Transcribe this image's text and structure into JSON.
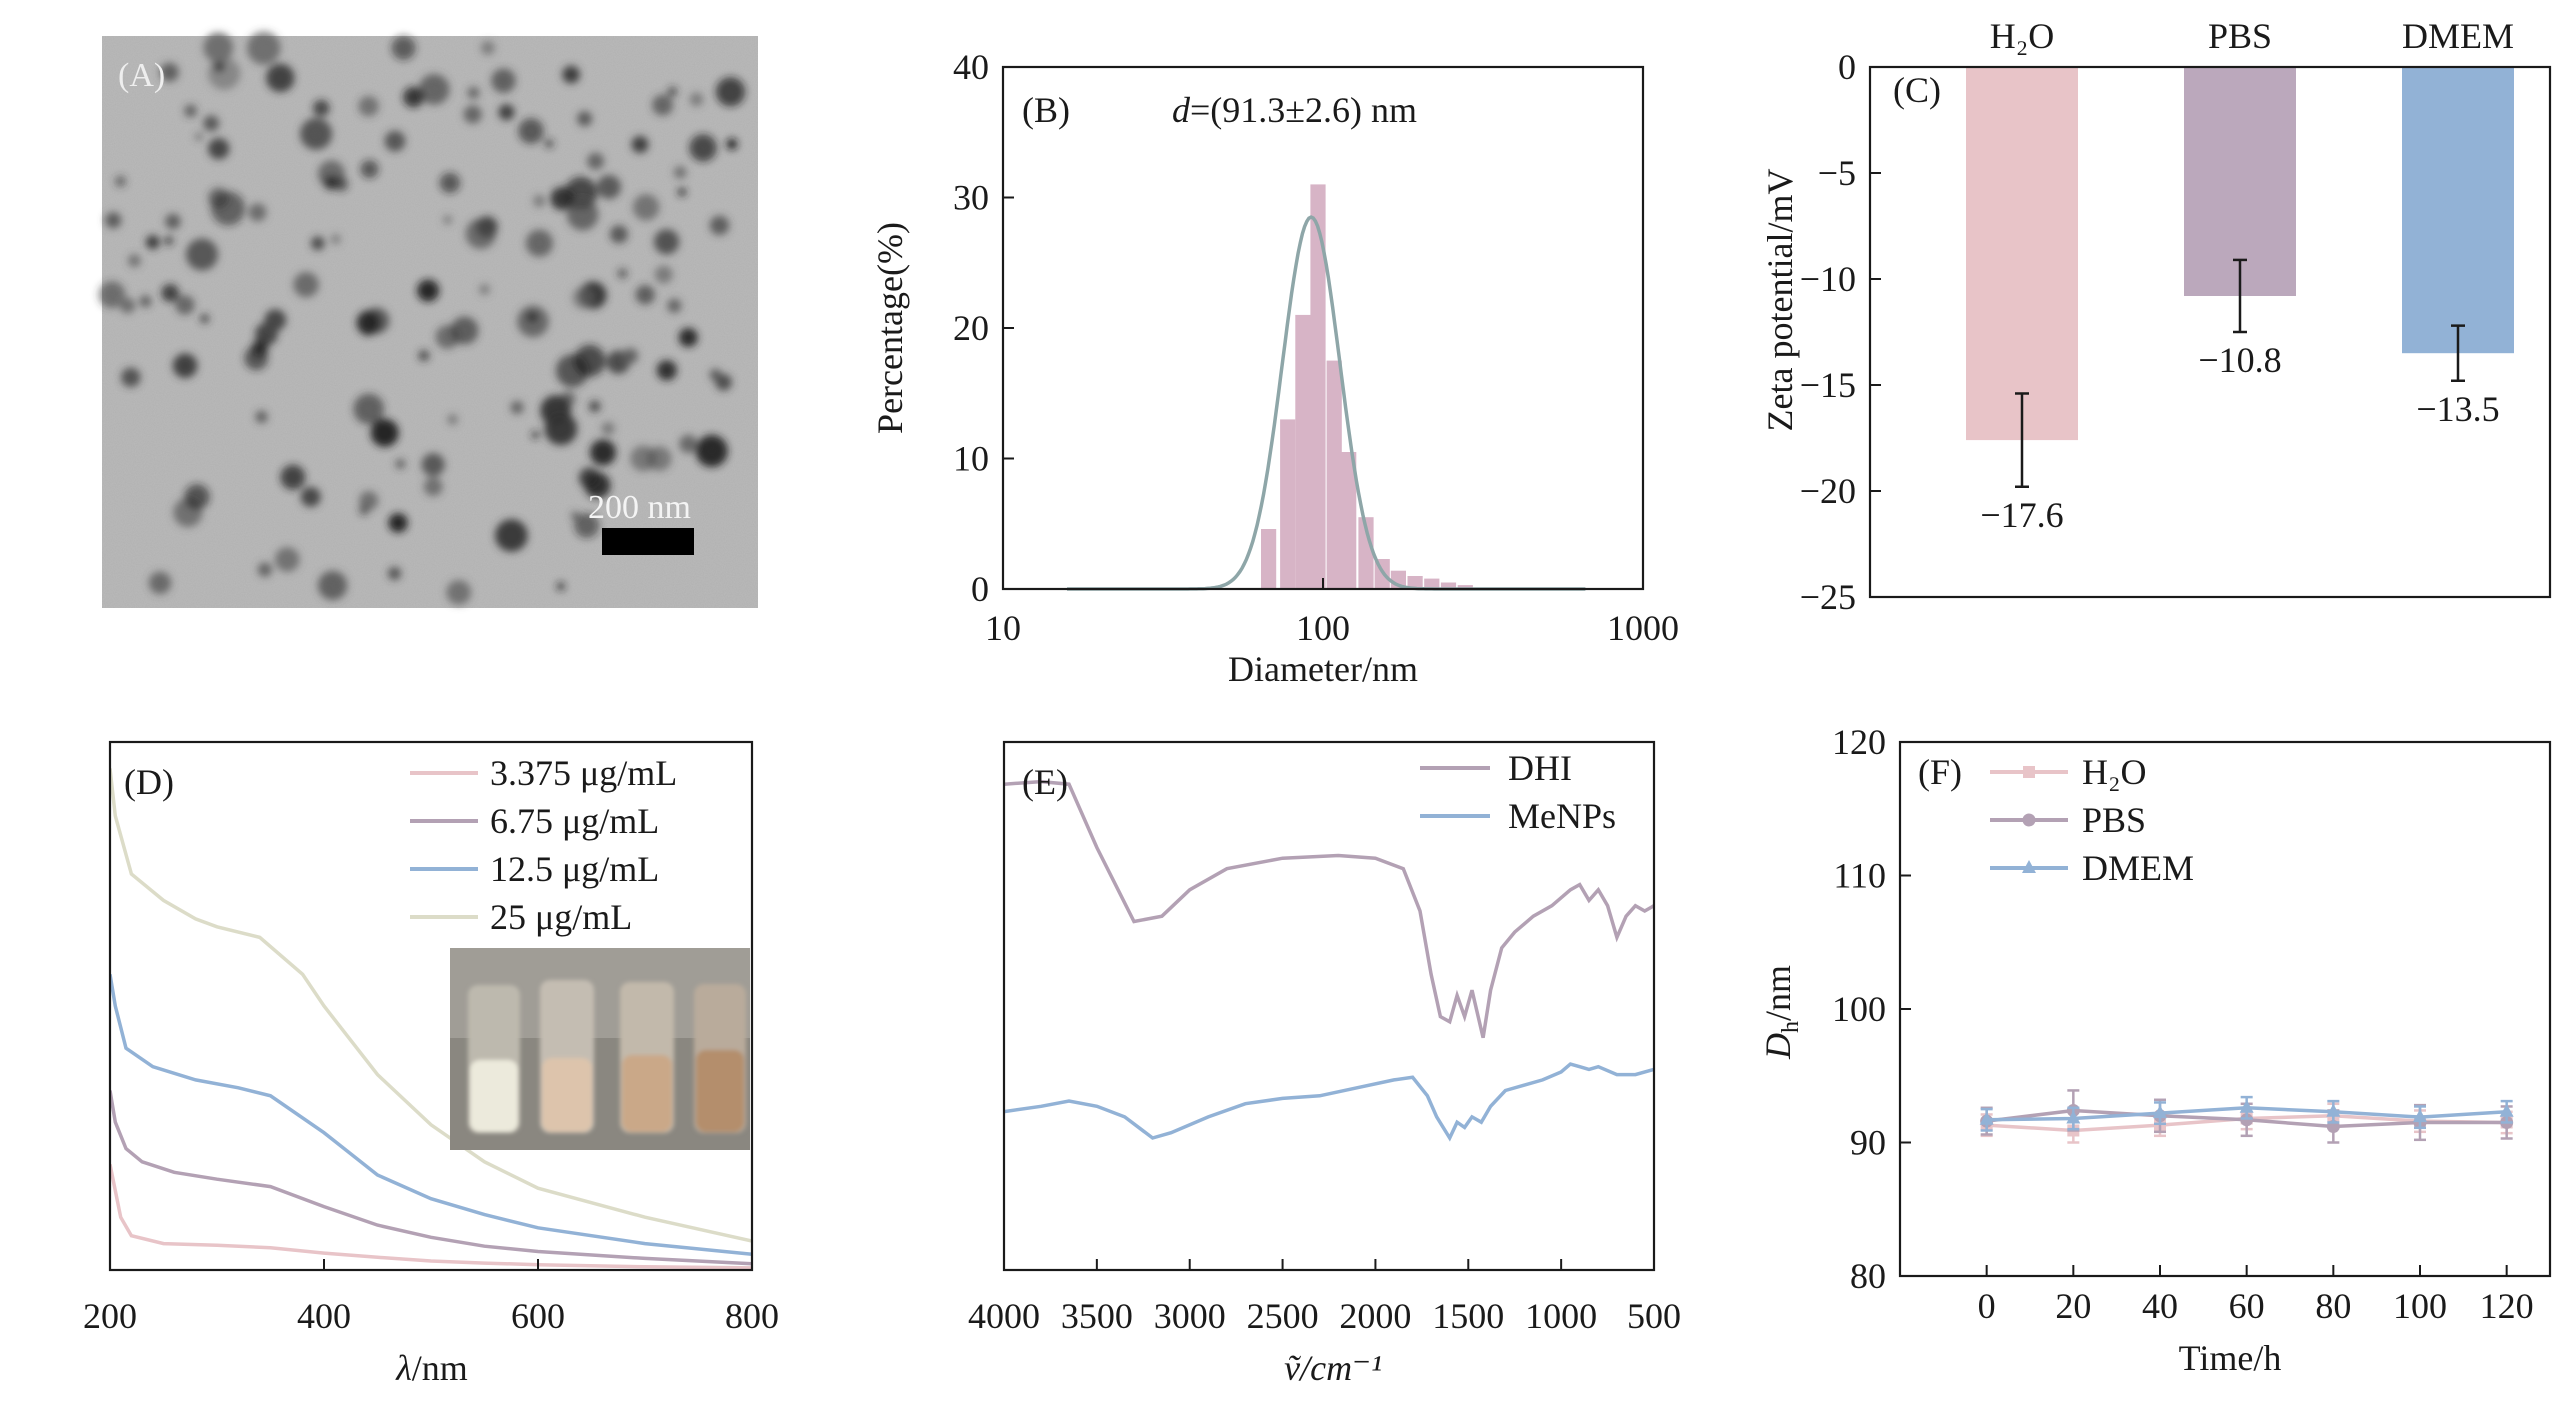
{
  "chart_data": [
    {
      "panel": "(A)",
      "type": "image",
      "scale_bar_label": "200 nm"
    },
    {
      "panel": "(B)",
      "type": "bar",
      "annotation": {
        "d": "d",
        "value": "=(91.3±2.6) nm"
      },
      "xlabel": "Diameter/nm",
      "ylabel": "Percentage(%)",
      "xscale": "log",
      "xlim": [
        10,
        1000
      ],
      "ylim": [
        0,
        40
      ],
      "xticks": [
        10,
        100,
        1000
      ],
      "yticks": [
        0,
        10,
        20,
        30,
        40
      ],
      "bars": [
        {
          "x": 68,
          "y": 4.6
        },
        {
          "x": 78,
          "y": 13
        },
        {
          "x": 87,
          "y": 21
        },
        {
          "x": 97,
          "y": 31
        },
        {
          "x": 109,
          "y": 17.5
        },
        {
          "x": 121,
          "y": 10.5
        },
        {
          "x": 137,
          "y": 5.5
        },
        {
          "x": 154,
          "y": 2.3
        },
        {
          "x": 173,
          "y": 1.4
        },
        {
          "x": 195,
          "y": 1.0
        },
        {
          "x": 220,
          "y": 0.8
        },
        {
          "x": 248,
          "y": 0.5
        },
        {
          "x": 280,
          "y": 0.3
        }
      ],
      "fit_curve": {
        "mean_log10": 1.963,
        "sigma_log10": 0.09,
        "peak": 28.5
      }
    },
    {
      "panel": "(C)",
      "type": "bar",
      "ylabel": "Zeta potential/mV",
      "categories": [
        "H₂O",
        "PBS",
        "DMEM"
      ],
      "values": [
        -17.6,
        -10.8,
        -13.5
      ],
      "value_labels": [
        "−17.6",
        "−10.8",
        "−13.5"
      ],
      "errors": [
        2.2,
        1.7,
        1.3
      ],
      "colors": [
        "#e8c4c8",
        "#bba8bc",
        "#92b2d6"
      ],
      "ylim": [
        -25,
        0
      ],
      "yticks": [
        0,
        -5,
        -10,
        -15,
        -20,
        -25
      ],
      "ytick_labels": [
        "0",
        "−5",
        "−10",
        "−15",
        "−20",
        "−25"
      ]
    },
    {
      "panel": "(D)",
      "type": "line",
      "xlabel_symbol": "λ",
      "xlabel_unit": "/nm",
      "xlim": [
        200,
        800
      ],
      "xticks": [
        200,
        400,
        600,
        800
      ],
      "yaxis": "unlabeled",
      "legend": "top-right",
      "inset": "photo",
      "series": [
        {
          "name": "3.375 μg/mL",
          "color": "#e8c4c8",
          "points": [
            [
              200,
              0.2
            ],
            [
              210,
              0.1
            ],
            [
              220,
              0.065
            ],
            [
              250,
              0.05
            ],
            [
              300,
              0.047
            ],
            [
              350,
              0.042
            ],
            [
              400,
              0.032
            ],
            [
              450,
              0.024
            ],
            [
              500,
              0.017
            ],
            [
              550,
              0.013
            ],
            [
              600,
              0.01
            ],
            [
              700,
              0.006
            ],
            [
              800,
              0.004
            ]
          ]
        },
        {
          "name": "6.75 μg/mL",
          "color": "#b3a1b4",
          "points": [
            [
              200,
              0.34
            ],
            [
              205,
              0.28
            ],
            [
              215,
              0.23
            ],
            [
              230,
              0.205
            ],
            [
              260,
              0.185
            ],
            [
              300,
              0.172
            ],
            [
              350,
              0.158
            ],
            [
              400,
              0.12
            ],
            [
              450,
              0.085
            ],
            [
              500,
              0.062
            ],
            [
              550,
              0.045
            ],
            [
              600,
              0.035
            ],
            [
              700,
              0.022
            ],
            [
              800,
              0.012
            ]
          ]
        },
        {
          "name": "12.5 μg/mL",
          "color": "#92b2d6",
          "points": [
            [
              200,
              0.56
            ],
            [
              205,
              0.5
            ],
            [
              215,
              0.42
            ],
            [
              240,
              0.385
            ],
            [
              280,
              0.36
            ],
            [
              320,
              0.345
            ],
            [
              350,
              0.33
            ],
            [
              400,
              0.26
            ],
            [
              450,
              0.18
            ],
            [
              500,
              0.135
            ],
            [
              550,
              0.105
            ],
            [
              600,
              0.08
            ],
            [
              700,
              0.05
            ],
            [
              800,
              0.03
            ]
          ]
        },
        {
          "name": "25 μg/mL",
          "color": "#dcdcc8",
          "points": [
            [
              200,
              0.95
            ],
            [
              205,
              0.86
            ],
            [
              220,
              0.75
            ],
            [
              250,
              0.7
            ],
            [
              280,
              0.665
            ],
            [
              300,
              0.65
            ],
            [
              340,
              0.63
            ],
            [
              380,
              0.56
            ],
            [
              400,
              0.5
            ],
            [
              450,
              0.37
            ],
            [
              500,
              0.275
            ],
            [
              550,
              0.205
            ],
            [
              600,
              0.155
            ],
            [
              700,
              0.1
            ],
            [
              800,
              0.055
            ]
          ]
        }
      ]
    },
    {
      "panel": "(E)",
      "type": "line",
      "xlabel": "ṽ/cm⁻¹",
      "xlim": [
        4000,
        500
      ],
      "xticks": [
        4000,
        3500,
        3000,
        2500,
        2000,
        1500,
        1000,
        500
      ],
      "yaxis": "unlabeled",
      "legend": "top-right",
      "series": [
        {
          "name": "DHI",
          "color": "#b3a1b4",
          "points": [
            [
              4000,
              0.92
            ],
            [
              3800,
              0.925
            ],
            [
              3650,
              0.92
            ],
            [
              3500,
              0.8
            ],
            [
              3300,
              0.66
            ],
            [
              3150,
              0.67
            ],
            [
              3000,
              0.72
            ],
            [
              2800,
              0.76
            ],
            [
              2500,
              0.78
            ],
            [
              2200,
              0.785
            ],
            [
              2000,
              0.78
            ],
            [
              1850,
              0.76
            ],
            [
              1760,
              0.68
            ],
            [
              1700,
              0.56
            ],
            [
              1650,
              0.48
            ],
            [
              1600,
              0.47
            ],
            [
              1560,
              0.52
            ],
            [
              1520,
              0.48
            ],
            [
              1480,
              0.53
            ],
            [
              1420,
              0.44
            ],
            [
              1380,
              0.53
            ],
            [
              1320,
              0.61
            ],
            [
              1250,
              0.64
            ],
            [
              1150,
              0.67
            ],
            [
              1050,
              0.69
            ],
            [
              950,
              0.72
            ],
            [
              900,
              0.73
            ],
            [
              850,
              0.7
            ],
            [
              800,
              0.72
            ],
            [
              750,
              0.69
            ],
            [
              700,
              0.63
            ],
            [
              650,
              0.67
            ],
            [
              600,
              0.69
            ],
            [
              550,
              0.68
            ],
            [
              500,
              0.69
            ]
          ]
        },
        {
          "name": "MeNPs",
          "color": "#92b2d6",
          "points": [
            [
              4000,
              0.3
            ],
            [
              3800,
              0.31
            ],
            [
              3650,
              0.32
            ],
            [
              3500,
              0.31
            ],
            [
              3350,
              0.29
            ],
            [
              3200,
              0.25
            ],
            [
              3100,
              0.26
            ],
            [
              2900,
              0.29
            ],
            [
              2700,
              0.315
            ],
            [
              2500,
              0.325
            ],
            [
              2300,
              0.33
            ],
            [
              2100,
              0.345
            ],
            [
              1900,
              0.36
            ],
            [
              1800,
              0.365
            ],
            [
              1720,
              0.33
            ],
            [
              1670,
              0.29
            ],
            [
              1600,
              0.25
            ],
            [
              1560,
              0.28
            ],
            [
              1520,
              0.27
            ],
            [
              1480,
              0.29
            ],
            [
              1430,
              0.28
            ],
            [
              1380,
              0.31
            ],
            [
              1300,
              0.34
            ],
            [
              1200,
              0.35
            ],
            [
              1100,
              0.36
            ],
            [
              1000,
              0.375
            ],
            [
              950,
              0.39
            ],
            [
              900,
              0.385
            ],
            [
              850,
              0.38
            ],
            [
              800,
              0.385
            ],
            [
              700,
              0.37
            ],
            [
              600,
              0.37
            ],
            [
              500,
              0.38
            ]
          ]
        }
      ]
    },
    {
      "panel": "(F)",
      "type": "line",
      "xlabel": "Time/h",
      "ylabel_symbol": "D",
      "ylabel_sub": "h",
      "ylabel_unit": "/nm",
      "xlim": [
        -20,
        130
      ],
      "ylim": [
        80,
        120
      ],
      "xticks": [
        0,
        20,
        40,
        60,
        80,
        100,
        120
      ],
      "yticks": [
        80,
        90,
        100,
        110,
        120
      ],
      "legend": "top-left",
      "series": [
        {
          "name": "H₂O",
          "color": "#e8c4c8",
          "marker": "square",
          "x": [
            0,
            20,
            40,
            60,
            80,
            100,
            120
          ],
          "y": [
            91.3,
            90.9,
            91.3,
            91.8,
            92.0,
            91.6,
            91.5
          ],
          "err": [
            0.8,
            0.9,
            0.8,
            0.8,
            0.9,
            0.8,
            0.8
          ]
        },
        {
          "name": "PBS",
          "color": "#b3a1b4",
          "marker": "circle",
          "x": [
            0,
            20,
            40,
            60,
            80,
            100,
            120
          ],
          "y": [
            91.6,
            92.4,
            92.0,
            91.7,
            91.2,
            91.5,
            91.5
          ],
          "err": [
            1.0,
            1.5,
            1.2,
            1.2,
            1.2,
            1.3,
            1.2
          ]
        },
        {
          "name": "DMEM",
          "color": "#92b2d6",
          "marker": "triangle",
          "x": [
            0,
            20,
            40,
            60,
            80,
            100,
            120
          ],
          "y": [
            91.7,
            91.8,
            92.2,
            92.6,
            92.3,
            91.9,
            92.3
          ],
          "err": [
            0.8,
            0.8,
            0.8,
            0.8,
            0.8,
            0.8,
            0.8
          ]
        }
      ]
    }
  ]
}
